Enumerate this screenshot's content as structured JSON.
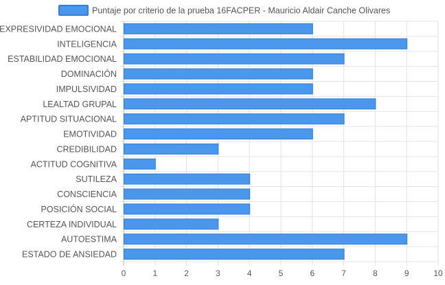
{
  "chart_data": {
    "type": "bar",
    "orientation": "horizontal",
    "categories": [
      "EXPRESIVIDAD EMOCIONAL",
      "INTELIGENCIA",
      "ESTABILIDAD EMOCIONAL",
      "DOMINACIÓN",
      "IMPULSIVIDAD",
      "LEALTAD GRUPAL",
      "APTITUD SITUACIONAL",
      "EMOTIVIDAD",
      "CREDIBILIDAD",
      "ACTITUD COGNITIVA",
      "SUTILEZA",
      "CONSCIENCIA",
      "POSICIÓN SOCIAL",
      "CERTEZA INDIVIDUAL",
      "AUTOESTIMA",
      "ESTADO DE ANSIEDAD"
    ],
    "series": [
      {
        "name": "Puntaje por criterio de la prueba 16FACPER - Mauricio Aldair Canche Olivares",
        "values": [
          6,
          9,
          7,
          6,
          6,
          8,
          7,
          6,
          3,
          1,
          4,
          4,
          4,
          3,
          9,
          7
        ]
      }
    ],
    "xlim": [
      0,
      10
    ],
    "x_ticks": [
      "0",
      "1",
      "2",
      "3",
      "4",
      "5",
      "6",
      "7",
      "8",
      "9",
      "10"
    ],
    "grid": true,
    "legend_position": "top",
    "colors": {
      "bar_fill": "#4a97eb",
      "bar_stroke": "#2f7fd8",
      "grid": "#e3e3e3",
      "axis": "#bdbdbd",
      "text": "#555555"
    }
  }
}
